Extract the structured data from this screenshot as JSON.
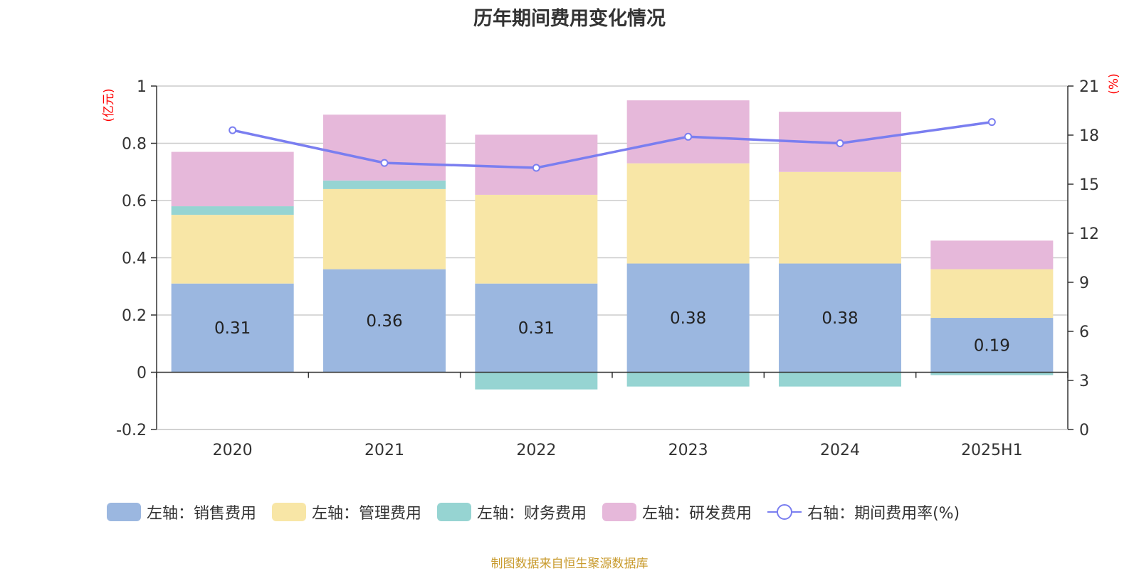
{
  "title": "历年期间费用变化情况",
  "source": "制图数据来自恒生聚源数据库",
  "colors": {
    "sales": "#9bb7e0",
    "admin": "#f8e6a6",
    "finance": "#96d4d2",
    "rd": "#e6b8da",
    "rate": "#7a7ef0",
    "axis_unit": "#ff0000",
    "source": "#c89a2c"
  },
  "legend": [
    {
      "key": "sales",
      "label": "左轴：销售费用"
    },
    {
      "key": "admin",
      "label": "左轴：管理费用"
    },
    {
      "key": "finance",
      "label": "左轴：财务费用"
    },
    {
      "key": "rd",
      "label": "左轴：研发费用"
    },
    {
      "key": "rate",
      "label": "右轴：期间费用率(%)"
    }
  ],
  "chart_data": {
    "type": "bar",
    "stacked": true,
    "categories": [
      "2020",
      "2021",
      "2022",
      "2023",
      "2024",
      "2025H1"
    ],
    "y_left": {
      "unit_label": "(亿元)",
      "ylim": [
        -0.2,
        1
      ],
      "ticks": [
        -0.2,
        0,
        0.2,
        0.4,
        0.6,
        0.8,
        1
      ]
    },
    "y_right": {
      "unit_label": "(%)",
      "ylim": [
        0,
        21
      ],
      "ticks": [
        0,
        3,
        6,
        9,
        12,
        15,
        18,
        21
      ]
    },
    "series": [
      {
        "key": "sales",
        "name": "左轴：销售费用",
        "axis": "left",
        "values": [
          0.31,
          0.36,
          0.31,
          0.38,
          0.38,
          0.19
        ],
        "data_labels": [
          "0.31",
          "0.36",
          "0.31",
          "0.38",
          "0.38",
          "0.19"
        ]
      },
      {
        "key": "admin",
        "name": "左轴：管理费用",
        "axis": "left",
        "values": [
          0.24,
          0.28,
          0.31,
          0.35,
          0.32,
          0.17
        ]
      },
      {
        "key": "finance",
        "name": "左轴：财务费用",
        "axis": "left",
        "values": [
          0.03,
          0.03,
          -0.06,
          -0.05,
          -0.05,
          -0.01
        ]
      },
      {
        "key": "rd",
        "name": "左轴：研发费用",
        "axis": "left",
        "values": [
          0.19,
          0.23,
          0.21,
          0.22,
          0.21,
          0.1
        ]
      },
      {
        "key": "rate",
        "name": "右轴：期间费用率(%)",
        "axis": "right",
        "type": "line",
        "values": [
          18.3,
          16.3,
          16.0,
          17.9,
          17.5,
          18.8
        ]
      }
    ],
    "grid": true,
    "legend_position": "bottom"
  }
}
